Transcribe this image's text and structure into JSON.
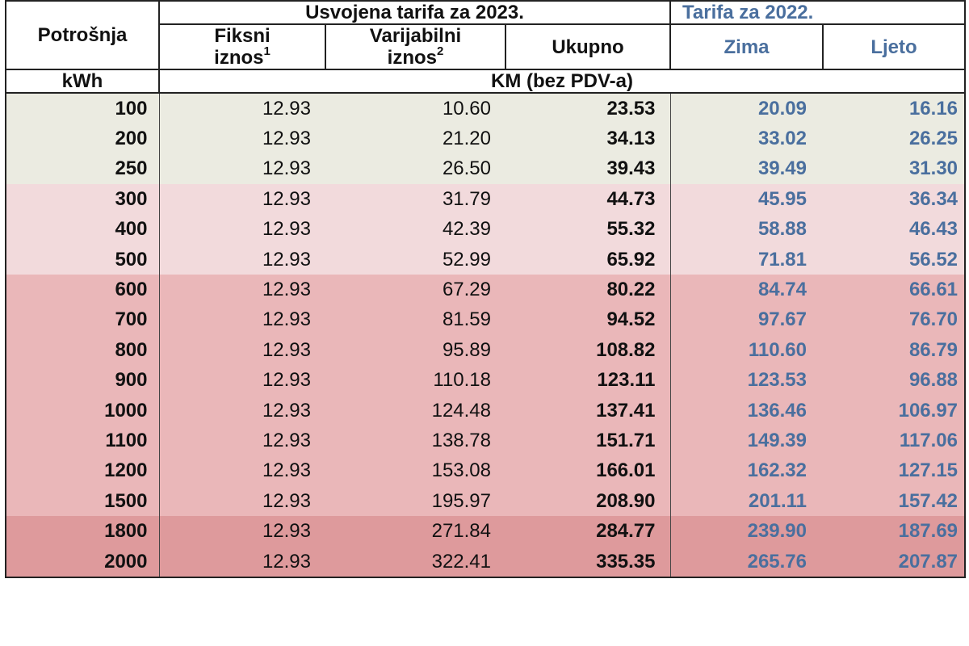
{
  "header": {
    "consumption": "Potrošnja",
    "tariff_2023": "Usvojena tarifa za 2023.",
    "tariff_2022": "Tarifa za 2022.",
    "fixed_line1": "Fiksni",
    "fixed_line2": "iznos",
    "fixed_sup": "1",
    "variable_line1": "Varijabilni",
    "variable_line2": "iznos",
    "variable_sup": "2",
    "total": "Ukupno",
    "winter": "Zima",
    "summer": "Ljeto",
    "unit_kwh": "kWh",
    "unit_km": "KM (bez PDV-a)"
  },
  "colors": {
    "tier1": "#ebebe1",
    "tier2": "#f2dadc",
    "tier3": "#eab7b9",
    "tier4": "#de9a9c",
    "blue_text": "#4a6f9e"
  },
  "rows": [
    {
      "kwh": "100",
      "fixed": "12.93",
      "variable": "10.60",
      "total": "23.53",
      "winter": "20.09",
      "summer": "16.16",
      "tier": 1
    },
    {
      "kwh": "200",
      "fixed": "12.93",
      "variable": "21.20",
      "total": "34.13",
      "winter": "33.02",
      "summer": "26.25",
      "tier": 1
    },
    {
      "kwh": "250",
      "fixed": "12.93",
      "variable": "26.50",
      "total": "39.43",
      "winter": "39.49",
      "summer": "31.30",
      "tier": 1
    },
    {
      "kwh": "300",
      "fixed": "12.93",
      "variable": "31.79",
      "total": "44.73",
      "winter": "45.95",
      "summer": "36.34",
      "tier": 2
    },
    {
      "kwh": "400",
      "fixed": "12.93",
      "variable": "42.39",
      "total": "55.32",
      "winter": "58.88",
      "summer": "46.43",
      "tier": 2
    },
    {
      "kwh": "500",
      "fixed": "12.93",
      "variable": "52.99",
      "total": "65.92",
      "winter": "71.81",
      "summer": "56.52",
      "tier": 2
    },
    {
      "kwh": "600",
      "fixed": "12.93",
      "variable": "67.29",
      "total": "80.22",
      "winter": "84.74",
      "summer": "66.61",
      "tier": 3
    },
    {
      "kwh": "700",
      "fixed": "12.93",
      "variable": "81.59",
      "total": "94.52",
      "winter": "97.67",
      "summer": "76.70",
      "tier": 3
    },
    {
      "kwh": "800",
      "fixed": "12.93",
      "variable": "95.89",
      "total": "108.82",
      "winter": "110.60",
      "summer": "86.79",
      "tier": 3
    },
    {
      "kwh": "900",
      "fixed": "12.93",
      "variable": "110.18",
      "total": "123.11",
      "winter": "123.53",
      "summer": "96.88",
      "tier": 3
    },
    {
      "kwh": "1000",
      "fixed": "12.93",
      "variable": "124.48",
      "total": "137.41",
      "winter": "136.46",
      "summer": "106.97",
      "tier": 3
    },
    {
      "kwh": "1100",
      "fixed": "12.93",
      "variable": "138.78",
      "total": "151.71",
      "winter": "149.39",
      "summer": "117.06",
      "tier": 3
    },
    {
      "kwh": "1200",
      "fixed": "12.93",
      "variable": "153.08",
      "total": "166.01",
      "winter": "162.32",
      "summer": "127.15",
      "tier": 3
    },
    {
      "kwh": "1500",
      "fixed": "12.93",
      "variable": "195.97",
      "total": "208.90",
      "winter": "201.11",
      "summer": "157.42",
      "tier": 3
    },
    {
      "kwh": "1800",
      "fixed": "12.93",
      "variable": "271.84",
      "total": "284.77",
      "winter": "239.90",
      "summer": "187.69",
      "tier": 4
    },
    {
      "kwh": "2000",
      "fixed": "12.93",
      "variable": "322.41",
      "total": "335.35",
      "winter": "265.76",
      "summer": "207.87",
      "tier": 4
    }
  ]
}
